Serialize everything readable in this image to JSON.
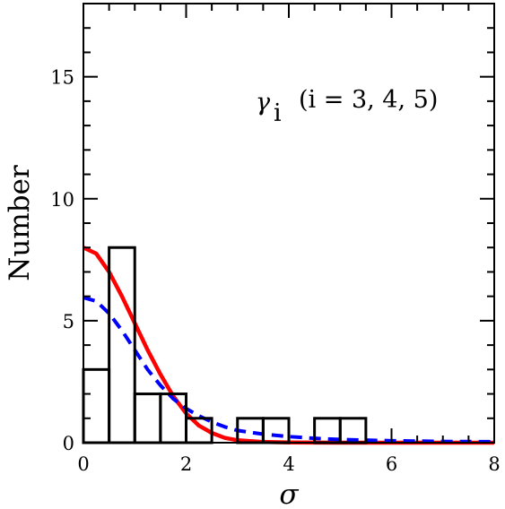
{
  "chart_data": {
    "type": "bar",
    "xlabel": "σ",
    "ylabel": "Number",
    "xlim": [
      0,
      8
    ],
    "ylim": [
      0,
      18
    ],
    "xticks": [
      0,
      2,
      4,
      6,
      8
    ],
    "yticks": [
      0,
      5,
      10,
      15
    ],
    "annotation": {
      "symbol": "γ",
      "subscript": "i",
      "text": "(i = 3, 4, 5)"
    },
    "histogram": {
      "bin_edges": [
        0,
        0.5,
        1.0,
        1.5,
        2.0,
        2.5,
        3.0,
        3.5,
        4.0,
        4.5,
        5.0,
        5.5
      ],
      "counts": [
        3,
        8,
        2,
        2,
        1,
        0,
        1,
        1,
        0,
        1,
        1
      ],
      "color": "#000000"
    },
    "curves": [
      {
        "style": "solid",
        "color": "#ff0000",
        "x": [
          0,
          0.25,
          0.5,
          0.75,
          1.0,
          1.25,
          1.5,
          1.75,
          2.0,
          2.25,
          2.5,
          2.75,
          3.0,
          3.5,
          4.0,
          5.0,
          6.0,
          7.0,
          8.0
        ],
        "values": [
          8.0,
          7.75,
          7.0,
          6.0,
          4.9,
          3.8,
          2.8,
          1.9,
          1.2,
          0.7,
          0.4,
          0.2,
          0.1,
          0.03,
          0.01,
          0.0,
          0.0,
          0.0,
          0.0
        ]
      },
      {
        "style": "dashed",
        "color": "#0000ff",
        "x": [
          0,
          0.25,
          0.5,
          0.75,
          1.0,
          1.25,
          1.5,
          1.75,
          2.0,
          2.25,
          2.5,
          2.75,
          3.0,
          3.5,
          4.0,
          4.5,
          5.0,
          6.0,
          7.0,
          8.0
        ],
        "values": [
          5.95,
          5.8,
          5.3,
          4.6,
          3.8,
          3.0,
          2.35,
          1.8,
          1.4,
          1.1,
          0.85,
          0.65,
          0.5,
          0.35,
          0.25,
          0.18,
          0.13,
          0.08,
          0.05,
          0.04
        ]
      }
    ]
  }
}
